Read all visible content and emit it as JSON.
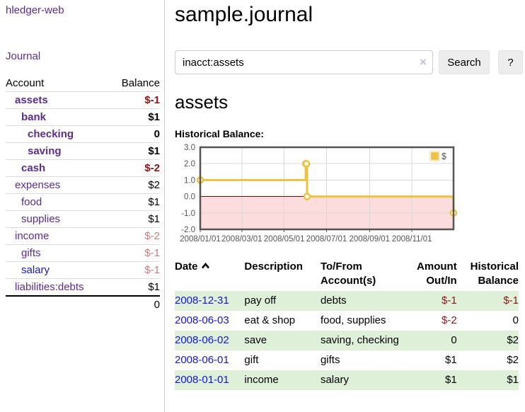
{
  "app": {
    "brand": "hledger-web",
    "nav_journal": "Journal"
  },
  "colors": {
    "link_purple": "#5b2d91",
    "link_blue": "#1414e0",
    "negative_strong": "#8b1515",
    "negative_dim": "#c67f7f",
    "stripe_green": "#dff0d8",
    "chart_line": "#edc240",
    "chart_negative_region": "#fcdcdc",
    "chart_zero_line": "#8b0000"
  },
  "sidebar": {
    "header": {
      "account": "Account",
      "balance": "Balance"
    },
    "accounts": [
      {
        "name": "assets",
        "balance": "$-1"
      },
      {
        "name": "bank",
        "balance": "$1"
      },
      {
        "name": "checking",
        "balance": "0"
      },
      {
        "name": "saving",
        "balance": "$1"
      },
      {
        "name": "cash",
        "balance": "$-2"
      },
      {
        "name": "expenses",
        "balance": "$2"
      },
      {
        "name": "food",
        "balance": "$1"
      },
      {
        "name": "supplies",
        "balance": "$1"
      },
      {
        "name": "income",
        "balance": "$-2"
      },
      {
        "name": "gifts",
        "balance": "$-1"
      },
      {
        "name": "salary",
        "balance": "$-1"
      },
      {
        "name": "liabilities:debts",
        "balance": "$1"
      }
    ],
    "total": "0"
  },
  "main": {
    "title": "sample.journal",
    "search": {
      "value": "inacct:assets",
      "clear_icon": "×",
      "button_label": "Search",
      "help_label": "?"
    },
    "account_heading": "assets",
    "chart_label": "Historical Balance:"
  },
  "chart_data": {
    "type": "line",
    "title": "Historical Balance:",
    "x_range": [
      "2008-01-01",
      "2008-12-31"
    ],
    "ylim": [
      -2,
      3
    ],
    "yticks": [
      3,
      2,
      1,
      0,
      -1,
      -2
    ],
    "xticks": [
      {
        "label": "2008/01/01",
        "date": "2008-01-01"
      },
      {
        "label": "2008/03/01",
        "date": "2008-03-01"
      },
      {
        "label": "2008/05/01",
        "date": "2008-05-01"
      },
      {
        "label": "2008/07/01",
        "date": "2008-07-01"
      },
      {
        "label": "2008/09/01",
        "date": "2008-09-01"
      },
      {
        "label": "2008/11/01",
        "date": "2008-11-01"
      }
    ],
    "series": [
      {
        "name": "$",
        "color": "#edc240",
        "step": true,
        "points": [
          [
            "2008-01-01",
            1
          ],
          [
            "2008-06-01",
            2
          ],
          [
            "2008-06-02",
            2
          ],
          [
            "2008-06-03",
            0
          ],
          [
            "2008-12-31",
            -1
          ]
        ]
      }
    ],
    "grid": true,
    "legend_position": "top-right",
    "negative_region_color": "#fcdcdc",
    "zero_line_color": "#8b0000"
  },
  "register": {
    "columns": {
      "date": "Date",
      "description": "Description",
      "accounts": "To/From Account(s)",
      "amount": "Amount Out/In",
      "balance": "Historical Balance"
    },
    "rows": [
      {
        "date": "2008-12-31",
        "description": "pay off",
        "accounts": "debts",
        "amount": "$-1",
        "balance": "$-1"
      },
      {
        "date": "2008-06-03",
        "description": "eat & shop",
        "accounts": "food, supplies",
        "amount": "$-2",
        "balance": "0"
      },
      {
        "date": "2008-06-02",
        "description": "save",
        "accounts": "saving, checking",
        "amount": "0",
        "balance": "$2"
      },
      {
        "date": "2008-06-01",
        "description": "gift",
        "accounts": "gifts",
        "amount": "$1",
        "balance": "$2"
      },
      {
        "date": "2008-01-01",
        "description": "income",
        "accounts": "salary",
        "amount": "$1",
        "balance": "$1"
      }
    ]
  }
}
